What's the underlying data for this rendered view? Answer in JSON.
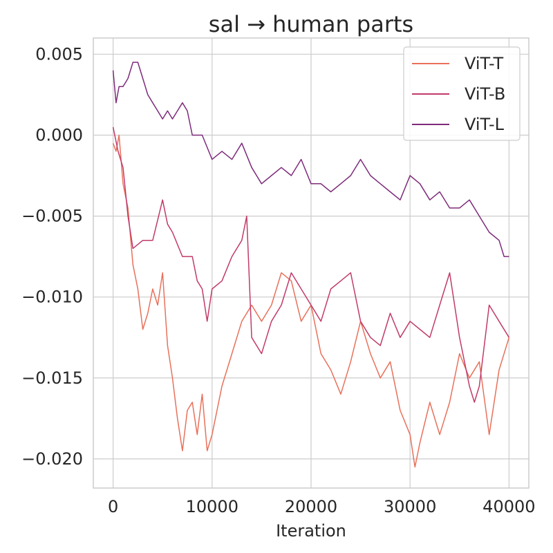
{
  "chart_data": {
    "type": "line",
    "title": "sal → human parts",
    "xlabel": "Iteration",
    "ylabel": "",
    "xlim": [
      -2000,
      42000
    ],
    "ylim": [
      -0.0218,
      0.006
    ],
    "xticks": [
      0,
      10000,
      20000,
      30000,
      40000
    ],
    "xtick_labels": [
      "0",
      "10000",
      "20000",
      "30000",
      "40000"
    ],
    "yticks": [
      0.005,
      0.0,
      -0.005,
      -0.01,
      -0.015,
      -0.02
    ],
    "ytick_labels": [
      "0.005",
      "0.000",
      "−0.005",
      "−0.010",
      "−0.015",
      "−0.020"
    ],
    "grid": true,
    "legend_position": "top-right",
    "series": [
      {
        "name": "ViT-T",
        "color": "#e8705a",
        "x": [
          0,
          300,
          600,
          1000,
          1500,
          2000,
          2500,
          3000,
          3500,
          4000,
          4500,
          5000,
          5500,
          6000,
          6500,
          7000,
          7500,
          8000,
          8500,
          9000,
          9500,
          10000,
          11000,
          12000,
          13000,
          14000,
          15000,
          16000,
          17000,
          18000,
          19000,
          20000,
          21000,
          22000,
          23000,
          24000,
          25000,
          26000,
          27000,
          28000,
          29000,
          30000,
          30500,
          31000,
          32000,
          33000,
          34000,
          35000,
          36000,
          37000,
          38000,
          39000,
          40000
        ],
        "y": [
          -0.0005,
          -0.001,
          0.0,
          -0.003,
          -0.0045,
          -0.008,
          -0.0095,
          -0.012,
          -0.011,
          -0.0095,
          -0.0105,
          -0.0085,
          -0.013,
          -0.015,
          -0.0175,
          -0.0195,
          -0.017,
          -0.0165,
          -0.0185,
          -0.016,
          -0.0195,
          -0.0185,
          -0.0155,
          -0.0135,
          -0.0115,
          -0.0105,
          -0.0115,
          -0.0105,
          -0.0085,
          -0.009,
          -0.0115,
          -0.0105,
          -0.0135,
          -0.0145,
          -0.016,
          -0.014,
          -0.0115,
          -0.0135,
          -0.015,
          -0.014,
          -0.017,
          -0.0185,
          -0.0205,
          -0.019,
          -0.0165,
          -0.0185,
          -0.0165,
          -0.0135,
          -0.015,
          -0.014,
          -0.0185,
          -0.0145,
          -0.0125
        ]
      },
      {
        "name": "ViT-B",
        "color": "#c13a6a",
        "x": [
          0,
          500,
          1000,
          1500,
          2000,
          3000,
          4000,
          5000,
          5500,
          6000,
          7000,
          8000,
          8500,
          9000,
          9500,
          10000,
          11000,
          12000,
          13000,
          13500,
          14000,
          15000,
          16000,
          17000,
          18000,
          19000,
          20000,
          21000,
          22000,
          23000,
          24000,
          25000,
          26000,
          27000,
          28000,
          29000,
          30000,
          31000,
          32000,
          33000,
          34000,
          35000,
          36000,
          36500,
          37000,
          38000,
          39000,
          40000
        ],
        "y": [
          0.0005,
          -0.001,
          -0.002,
          -0.005,
          -0.007,
          -0.0065,
          -0.0065,
          -0.004,
          -0.0055,
          -0.006,
          -0.0075,
          -0.0075,
          -0.009,
          -0.0095,
          -0.0115,
          -0.0095,
          -0.009,
          -0.0075,
          -0.0065,
          -0.005,
          -0.0125,
          -0.0135,
          -0.0115,
          -0.0105,
          -0.0085,
          -0.0095,
          -0.0105,
          -0.0115,
          -0.0095,
          -0.009,
          -0.0085,
          -0.0115,
          -0.0125,
          -0.013,
          -0.011,
          -0.0125,
          -0.0115,
          -0.012,
          -0.0125,
          -0.0105,
          -0.0085,
          -0.0125,
          -0.0155,
          -0.0165,
          -0.0155,
          -0.0105,
          -0.0115,
          -0.0125
        ]
      },
      {
        "name": "ViT-L",
        "color": "#7d2a7a",
        "x": [
          0,
          300,
          600,
          1000,
          1500,
          2000,
          2500,
          3000,
          3500,
          4000,
          4500,
          5000,
          5500,
          6000,
          6500,
          7000,
          7500,
          8000,
          9000,
          10000,
          11000,
          12000,
          13000,
          14000,
          15000,
          16000,
          17000,
          18000,
          19000,
          20000,
          21000,
          22000,
          23000,
          24000,
          25000,
          26000,
          27000,
          28000,
          29000,
          30000,
          31000,
          32000,
          33000,
          34000,
          35000,
          36000,
          37000,
          38000,
          39000,
          39500,
          40000
        ],
        "y": [
          0.004,
          0.002,
          0.003,
          0.003,
          0.0035,
          0.0045,
          0.0045,
          0.0035,
          0.0025,
          0.002,
          0.0015,
          0.001,
          0.0015,
          0.001,
          0.0015,
          0.002,
          0.0015,
          0.0,
          0.0,
          -0.0015,
          -0.001,
          -0.0015,
          -0.0005,
          -0.002,
          -0.003,
          -0.0025,
          -0.002,
          -0.0025,
          -0.0015,
          -0.003,
          -0.003,
          -0.0035,
          -0.003,
          -0.0025,
          -0.0015,
          -0.0025,
          -0.003,
          -0.0035,
          -0.004,
          -0.0025,
          -0.003,
          -0.004,
          -0.0035,
          -0.0045,
          -0.0045,
          -0.004,
          -0.005,
          -0.006,
          -0.0065,
          -0.0075,
          -0.0075
        ]
      }
    ]
  }
}
